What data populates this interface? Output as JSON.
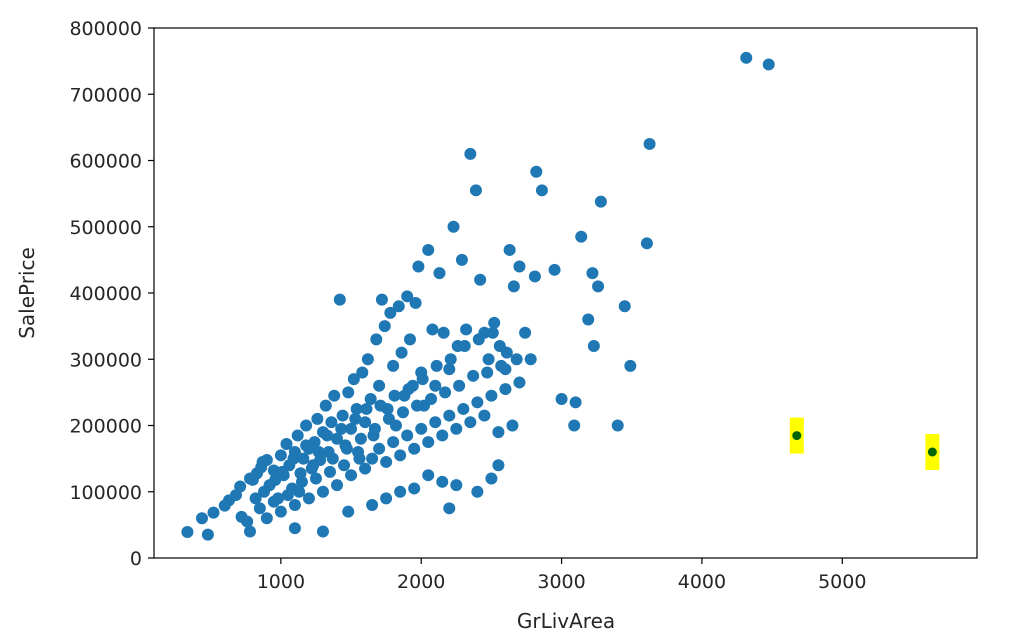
{
  "chart_data": {
    "type": "scatter",
    "title": "",
    "xlabel": "GrLivArea",
    "ylabel": "SalePrice",
    "xlim": [
      96,
      5960
    ],
    "ylim": [
      0,
      800000
    ],
    "xticks": [
      1000,
      2000,
      3000,
      4000,
      5000
    ],
    "xtick_labels": [
      "1000",
      "2000",
      "3000",
      "4000",
      "5000"
    ],
    "yticks": [
      0,
      100000,
      200000,
      300000,
      400000,
      500000,
      600000,
      700000,
      800000
    ],
    "ytick_labels": [
      "0",
      "100000",
      "200000",
      "300000",
      "400000",
      "500000",
      "600000",
      "700000",
      "800000"
    ],
    "grid": false,
    "legend": "none",
    "series": [
      {
        "color": "#1f77b4",
        "points": [
          [
            334,
            39300
          ],
          [
            480,
            35311
          ],
          [
            438,
            60000
          ],
          [
            520,
            68500
          ],
          [
            600,
            79000
          ],
          [
            630,
            87000
          ],
          [
            680,
            95000
          ],
          [
            710,
            108000
          ],
          [
            720,
            62000
          ],
          [
            760,
            55000
          ],
          [
            780,
            40000
          ],
          [
            800,
            118000
          ],
          [
            830,
            128000
          ],
          [
            860,
            137000
          ],
          [
            880,
            100000
          ],
          [
            900,
            148000
          ],
          [
            920,
            110000
          ],
          [
            950,
            132000
          ],
          [
            980,
            90000
          ],
          [
            1000,
            155000
          ],
          [
            1020,
            125000
          ],
          [
            1040,
            172000
          ],
          [
            1060,
            140000
          ],
          [
            1080,
            105000
          ],
          [
            1100,
            160000
          ],
          [
            1120,
            185000
          ],
          [
            1140,
            128000
          ],
          [
            1160,
            150000
          ],
          [
            1180,
            200000
          ],
          [
            1200,
            165000
          ],
          [
            1220,
            135000
          ],
          [
            1240,
            175000
          ],
          [
            1260,
            210000
          ],
          [
            1280,
            148000
          ],
          [
            1300,
            190000
          ],
          [
            1320,
            230000
          ],
          [
            1340,
            160000
          ],
          [
            1360,
            205000
          ],
          [
            1380,
            245000
          ],
          [
            1400,
            180000
          ],
          [
            1420,
            390000
          ],
          [
            1440,
            215000
          ],
          [
            1460,
            170000
          ],
          [
            1480,
            250000
          ],
          [
            1500,
            195000
          ],
          [
            1520,
            270000
          ],
          [
            1540,
            225000
          ],
          [
            1560,
            150000
          ],
          [
            1580,
            280000
          ],
          [
            1600,
            205000
          ],
          [
            1620,
            300000
          ],
          [
            1640,
            240000
          ],
          [
            1660,
            185000
          ],
          [
            1680,
            330000
          ],
          [
            1700,
            260000
          ],
          [
            1720,
            390000
          ],
          [
            1740,
            350000
          ],
          [
            1760,
            225000
          ],
          [
            1780,
            370000
          ],
          [
            1800,
            290000
          ],
          [
            1820,
            200000
          ],
          [
            1840,
            380000
          ],
          [
            1860,
            310000
          ],
          [
            1880,
            245000
          ],
          [
            1900,
            395000
          ],
          [
            1920,
            330000
          ],
          [
            1940,
            260000
          ],
          [
            1960,
            385000
          ],
          [
            1980,
            440000
          ],
          [
            2000,
            280000
          ],
          [
            2020,
            230000
          ],
          [
            2050,
            465000
          ],
          [
            2080,
            345000
          ],
          [
            2100,
            260000
          ],
          [
            2130,
            430000
          ],
          [
            2160,
            340000
          ],
          [
            2200,
            285000
          ],
          [
            2230,
            500000
          ],
          [
            2260,
            320000
          ],
          [
            2290,
            450000
          ],
          [
            2320,
            345000
          ],
          [
            2350,
            610000
          ],
          [
            2390,
            555000
          ],
          [
            2420,
            420000
          ],
          [
            2450,
            340000
          ],
          [
            2480,
            300000
          ],
          [
            2520,
            355000
          ],
          [
            2560,
            320000
          ],
          [
            2600,
            285000
          ],
          [
            2630,
            465000
          ],
          [
            2660,
            410000
          ],
          [
            2700,
            440000
          ],
          [
            2740,
            340000
          ],
          [
            2780,
            300000
          ],
          [
            2810,
            425000
          ],
          [
            2820,
            583000
          ],
          [
            2860,
            555000
          ],
          [
            2950,
            435000
          ],
          [
            3000,
            240000
          ],
          [
            3090,
            200000
          ],
          [
            3100,
            235000
          ],
          [
            3140,
            485000
          ],
          [
            3190,
            360000
          ],
          [
            3220,
            430000
          ],
          [
            3230,
            320000
          ],
          [
            3260,
            410000
          ],
          [
            3280,
            538000
          ],
          [
            3400,
            200000
          ],
          [
            3450,
            380000
          ],
          [
            3490,
            290000
          ],
          [
            3608,
            475000
          ],
          [
            3627,
            625000
          ],
          [
            4316,
            755000
          ],
          [
            4476,
            745000
          ],
          [
            850,
            75000
          ],
          [
            900,
            60000
          ],
          [
            950,
            85000
          ],
          [
            1000,
            70000
          ],
          [
            1050,
            95000
          ],
          [
            1100,
            80000
          ],
          [
            1150,
            115000
          ],
          [
            1200,
            90000
          ],
          [
            1250,
            120000
          ],
          [
            1300,
            100000
          ],
          [
            1350,
            130000
          ],
          [
            1400,
            110000
          ],
          [
            1450,
            140000
          ],
          [
            1500,
            125000
          ],
          [
            1550,
            160000
          ],
          [
            1600,
            135000
          ],
          [
            1650,
            150000
          ],
          [
            1700,
            165000
          ],
          [
            1750,
            145000
          ],
          [
            1800,
            175000
          ],
          [
            1850,
            155000
          ],
          [
            1900,
            185000
          ],
          [
            1950,
            165000
          ],
          [
            2000,
            195000
          ],
          [
            2050,
            175000
          ],
          [
            2100,
            205000
          ],
          [
            2150,
            185000
          ],
          [
            2200,
            215000
          ],
          [
            2250,
            195000
          ],
          [
            2300,
            225000
          ],
          [
            2350,
            205000
          ],
          [
            2400,
            235000
          ],
          [
            2450,
            215000
          ],
          [
            2500,
            245000
          ],
          [
            2550,
            190000
          ],
          [
            2600,
            255000
          ],
          [
            2650,
            200000
          ],
          [
            2700,
            265000
          ],
          [
            1480,
            70000
          ],
          [
            1650,
            80000
          ],
          [
            1750,
            90000
          ],
          [
            1850,
            100000
          ],
          [
            1950,
            105000
          ],
          [
            2050,
            125000
          ],
          [
            2150,
            115000
          ],
          [
            2250,
            110000
          ],
          [
            2400,
            100000
          ],
          [
            2500,
            120000
          ],
          [
            2550,
            140000
          ],
          [
            2200,
            75000
          ],
          [
            1100,
            45000
          ],
          [
            1300,
            40000
          ],
          [
            780,
            120000
          ],
          [
            820,
            90000
          ],
          [
            870,
            145000
          ],
          [
            960,
            118000
          ],
          [
            1010,
            130000
          ],
          [
            1090,
            150000
          ],
          [
            1130,
            100000
          ],
          [
            1180,
            170000
          ],
          [
            1230,
            140000
          ],
          [
            1270,
            160000
          ],
          [
            1330,
            185000
          ],
          [
            1370,
            150000
          ],
          [
            1430,
            195000
          ],
          [
            1470,
            165000
          ],
          [
            1530,
            210000
          ],
          [
            1570,
            180000
          ],
          [
            1610,
            225000
          ],
          [
            1670,
            195000
          ],
          [
            1710,
            230000
          ],
          [
            1770,
            210000
          ],
          [
            1810,
            245000
          ],
          [
            1870,
            220000
          ],
          [
            1910,
            255000
          ],
          [
            1970,
            230000
          ],
          [
            2010,
            270000
          ],
          [
            2070,
            240000
          ],
          [
            2110,
            290000
          ],
          [
            2170,
            250000
          ],
          [
            2210,
            300000
          ],
          [
            2270,
            260000
          ],
          [
            2310,
            320000
          ],
          [
            2370,
            275000
          ],
          [
            2410,
            330000
          ],
          [
            2470,
            280000
          ],
          [
            2510,
            340000
          ],
          [
            2570,
            290000
          ],
          [
            2610,
            310000
          ],
          [
            2680,
            300000
          ]
        ]
      },
      {
        "color": "#006400",
        "highlight": "#ffff00",
        "points": [
          [
            4676,
            184750
          ],
          [
            5642,
            160000
          ]
        ]
      }
    ]
  }
}
